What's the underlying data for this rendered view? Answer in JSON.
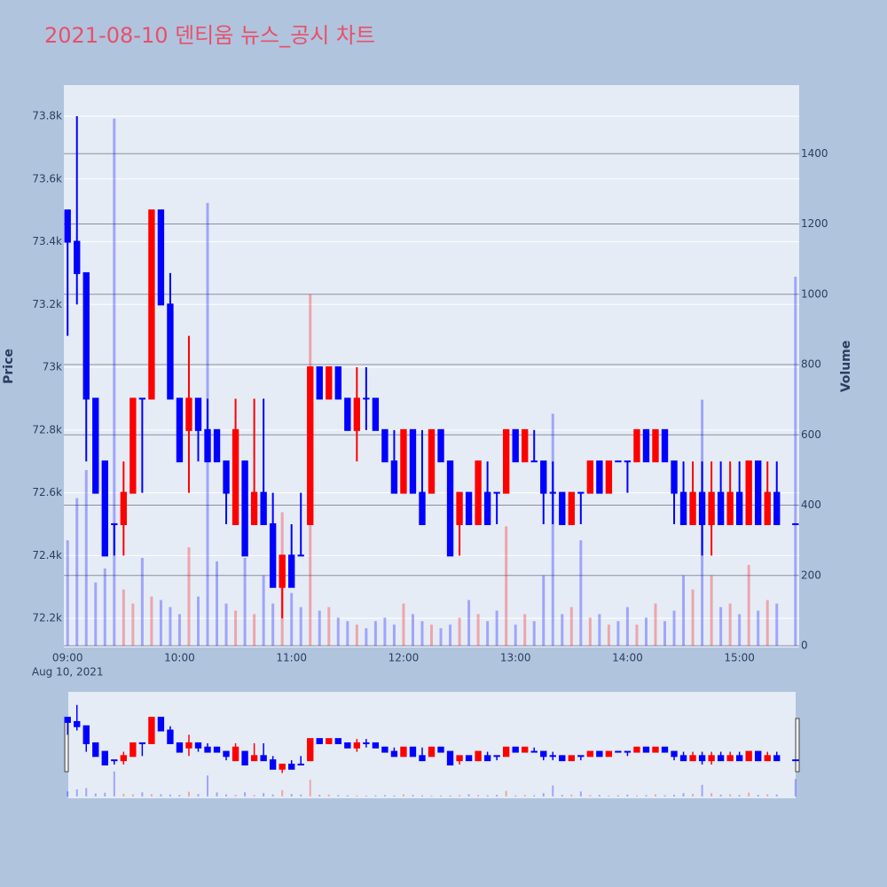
{
  "chart_data": {
    "type": "candlestick",
    "title": "2021-08-10 덴티움 뉴스_공시 차트",
    "y_label": "Price",
    "y2_label": "Volume",
    "x_sublabel": "Aug 10, 2021",
    "increasing_color": "#ff0000",
    "decreasing_color": "#0000ff",
    "x": [
      "09:00",
      "09:05",
      "09:10",
      "09:15",
      "09:20",
      "09:25",
      "09:30",
      "09:35",
      "09:40",
      "09:45",
      "09:50",
      "09:55",
      "10:00",
      "10:05",
      "10:10",
      "10:15",
      "10:20",
      "10:25",
      "10:30",
      "10:35",
      "10:40",
      "10:45",
      "10:50",
      "10:55",
      "11:00",
      "11:05",
      "11:10",
      "11:15",
      "11:20",
      "11:25",
      "11:30",
      "11:35",
      "11:40",
      "11:45",
      "11:50",
      "11:55",
      "12:00",
      "12:05",
      "12:10",
      "12:15",
      "12:20",
      "12:25",
      "12:30",
      "12:35",
      "12:40",
      "12:45",
      "12:50",
      "12:55",
      "13:00",
      "13:05",
      "13:10",
      "13:15",
      "13:20",
      "13:25",
      "13:30",
      "13:35",
      "13:40",
      "13:45",
      "13:50",
      "13:55",
      "14:00",
      "14:05",
      "14:10",
      "14:15",
      "14:20",
      "14:25",
      "14:30",
      "14:35",
      "14:40",
      "14:45",
      "14:50",
      "14:55",
      "15:00",
      "15:05",
      "15:10",
      "15:15",
      "15:20",
      "15:30"
    ],
    "open": [
      73500,
      73400,
      73300,
      72900,
      72700,
      72500,
      72500,
      72600,
      72900,
      72900,
      73500,
      73200,
      72900,
      72800,
      72900,
      72800,
      72800,
      72700,
      72500,
      72700,
      72500,
      72600,
      72500,
      72300,
      72400,
      72400,
      72500,
      73000,
      72900,
      73000,
      72900,
      72800,
      72900,
      72900,
      72800,
      72700,
      72600,
      72800,
      72600,
      72600,
      72800,
      72700,
      72500,
      72600,
      72500,
      72600,
      72600,
      72600,
      72800,
      72700,
      72700,
      72700,
      72600,
      72600,
      72500,
      72600,
      72600,
      72700,
      72600,
      72700,
      72700,
      72700,
      72800,
      72700,
      72800,
      72700,
      72600,
      72500,
      72600,
      72500,
      72600,
      72500,
      72600,
      72500,
      72700,
      72500,
      72600,
      72500
    ],
    "high": [
      73500,
      73800,
      73300,
      72900,
      72700,
      72500,
      72700,
      72900,
      72900,
      73500,
      73500,
      73300,
      72900,
      73100,
      72900,
      72900,
      72800,
      72700,
      72900,
      72700,
      72900,
      72900,
      72600,
      72400,
      72500,
      72600,
      73000,
      73000,
      73000,
      73000,
      72900,
      73000,
      73000,
      72900,
      72800,
      72800,
      72800,
      72800,
      72800,
      72800,
      72800,
      72700,
      72600,
      72600,
      72700,
      72700,
      72600,
      72800,
      72800,
      72800,
      72800,
      72700,
      72700,
      72600,
      72600,
      72600,
      72700,
      72700,
      72700,
      72700,
      72700,
      72800,
      72800,
      72800,
      72800,
      72700,
      72700,
      72700,
      72700,
      72700,
      72700,
      72700,
      72700,
      72700,
      72700,
      72700,
      72700,
      72500
    ],
    "low": [
      73100,
      73200,
      72700,
      72600,
      72400,
      72400,
      72400,
      72600,
      72600,
      72900,
      73200,
      72900,
      72700,
      72600,
      72700,
      72700,
      72700,
      72500,
      72500,
      72400,
      72500,
      72500,
      72300,
      72200,
      72300,
      72400,
      72500,
      72900,
      72900,
      72900,
      72800,
      72700,
      72800,
      72800,
      72700,
      72600,
      72600,
      72600,
      72500,
      72600,
      72700,
      72400,
      72400,
      72500,
      72500,
      72500,
      72500,
      72600,
      72700,
      72700,
      72700,
      72500,
      72500,
      72500,
      72500,
      72500,
      72600,
      72600,
      72600,
      72700,
      72600,
      72700,
      72700,
      72700,
      72700,
      72500,
      72500,
      72500,
      72400,
      72400,
      72500,
      72500,
      72500,
      72500,
      72500,
      72500,
      72500,
      72500
    ],
    "close": [
      73400,
      73300,
      72900,
      72600,
      72400,
      72500,
      72600,
      72900,
      72900,
      73500,
      73200,
      72900,
      72700,
      72900,
      72800,
      72700,
      72700,
      72600,
      72800,
      72400,
      72600,
      72500,
      72300,
      72400,
      72300,
      72400,
      73000,
      72900,
      73000,
      72900,
      72800,
      72900,
      72900,
      72800,
      72700,
      72600,
      72800,
      72600,
      72500,
      72800,
      72700,
      72400,
      72600,
      72500,
      72700,
      72500,
      72600,
      72800,
      72700,
      72800,
      72700,
      72600,
      72600,
      72500,
      72600,
      72600,
      72700,
      72600,
      72700,
      72700,
      72700,
      72800,
      72700,
      72800,
      72700,
      72600,
      72500,
      72600,
      72500,
      72600,
      72500,
      72600,
      72500,
      72700,
      72500,
      72600,
      72500,
      72500
    ],
    "volume": [
      300,
      420,
      500,
      180,
      220,
      1500,
      160,
      120,
      250,
      140,
      130,
      110,
      90,
      280,
      140,
      1260,
      240,
      120,
      100,
      250,
      90,
      200,
      120,
      380,
      150,
      110,
      1000,
      100,
      110,
      80,
      70,
      60,
      50,
      70,
      80,
      60,
      120,
      90,
      70,
      60,
      50,
      60,
      80,
      130,
      90,
      70,
      100,
      340,
      60,
      90,
      70,
      200,
      660,
      90,
      110,
      300,
      80,
      90,
      60,
      70,
      110,
      60,
      80,
      120,
      70,
      100,
      200,
      160,
      700,
      200,
      110,
      120,
      90,
      230,
      100,
      130,
      120,
      1050
    ],
    "xlim": [
      "08:58",
      "15:32"
    ],
    "xticks": [
      "09:00",
      "10:00",
      "11:00",
      "12:00",
      "13:00",
      "14:00",
      "15:00"
    ],
    "ylim": [
      72107,
      73899
    ],
    "yticks": [
      {
        "value": 72200,
        "label": "72.2k"
      },
      {
        "value": 72400,
        "label": "72.4k"
      },
      {
        "value": 72600,
        "label": "72.6k"
      },
      {
        "value": 72800,
        "label": "72.8k"
      },
      {
        "value": 73000,
        "label": "73k"
      },
      {
        "value": 73200,
        "label": "73.2k"
      },
      {
        "value": 73400,
        "label": "73.4k"
      },
      {
        "value": 73600,
        "label": "73.6k"
      },
      {
        "value": 73800,
        "label": "73.8k"
      }
    ],
    "y2lim": [
      -5,
      1595
    ],
    "y2ticks": [
      0,
      200,
      400,
      600,
      800,
      1000,
      1200,
      1400
    ]
  }
}
